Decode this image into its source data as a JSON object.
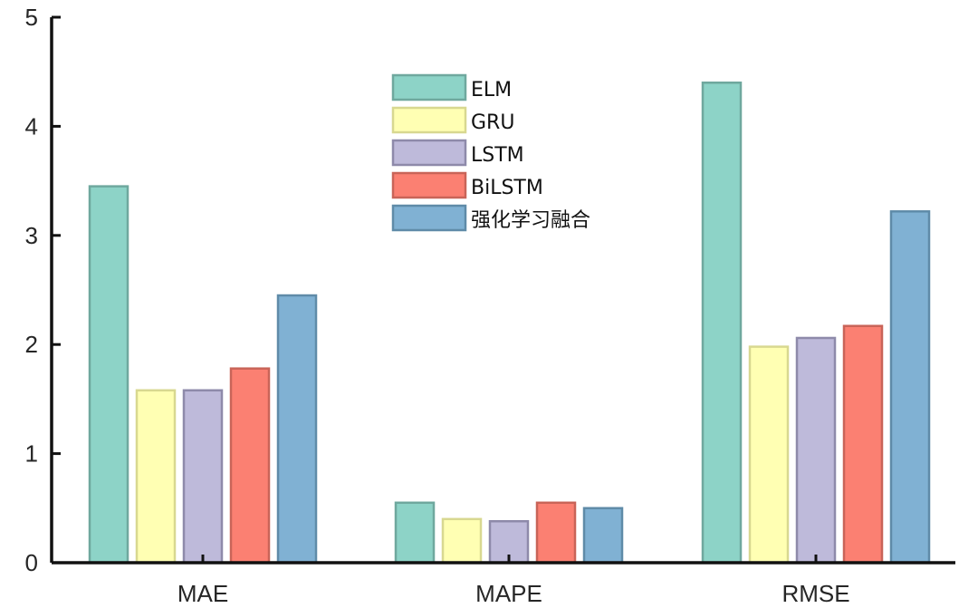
{
  "chart_data": {
    "type": "bar",
    "categories": [
      "MAE",
      "MAPE",
      "RMSE"
    ],
    "series": [
      {
        "name": "ELM",
        "values": [
          3.45,
          0.55,
          4.4
        ],
        "color": "#8DD3C7",
        "edge": "#6FA89E"
      },
      {
        "name": "GRU",
        "values": [
          1.58,
          0.4,
          1.98
        ],
        "color": "#FFFFB3",
        "edge": "#D8D890"
      },
      {
        "name": "LSTM",
        "values": [
          1.58,
          0.38,
          2.06
        ],
        "color": "#BEBADA",
        "edge": "#8E8AAA"
      },
      {
        "name": "BiLSTM",
        "values": [
          1.78,
          0.55,
          2.17
        ],
        "color": "#FB8072",
        "edge": "#C96458"
      },
      {
        "name": "强化学习融合",
        "values": [
          2.45,
          0.5,
          3.22
        ],
        "color": "#80B1D3",
        "edge": "#5F8BA8"
      }
    ],
    "ylim": [
      0,
      5
    ],
    "yticks": [
      0,
      1,
      2,
      3,
      4,
      5
    ],
    "legend": "top-center",
    "grid": false,
    "title": "",
    "xlabel": "",
    "ylabel": ""
  }
}
